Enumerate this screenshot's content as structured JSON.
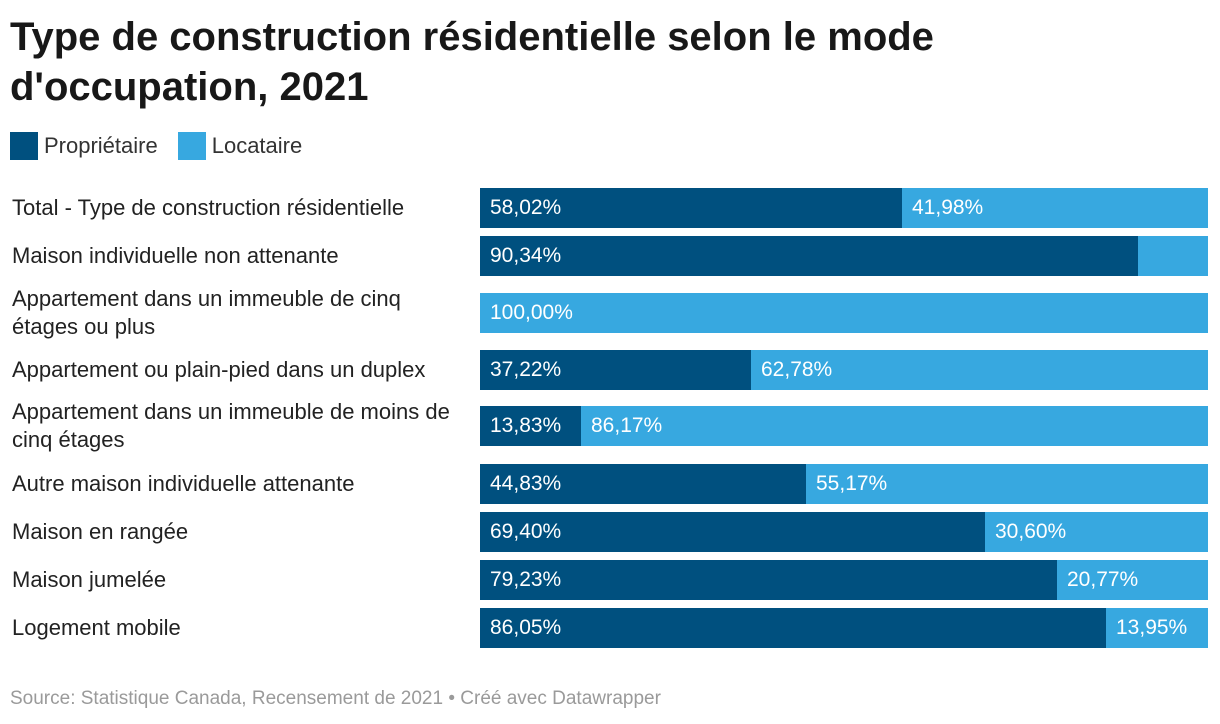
{
  "title": "Type de construction résidentielle selon le mode d'occupation, 2021",
  "source": "Source: Statistique Canada, Recensement de 2021 • Créé avec Datawrapper",
  "colors": {
    "proprietaire": "#00507f",
    "locataire": "#37a8e0"
  },
  "chart_data": {
    "type": "bar",
    "orientation": "horizontal",
    "stacked": true,
    "percent_scale": true,
    "legend_position": "top-left",
    "title": "Type de construction résidentielle selon le mode d'occupation, 2021",
    "categories": [
      "Total - Type de construction résidentielle",
      "Maison individuelle non attenante",
      "Appartement dans un immeuble de cinq étages ou plus",
      "Appartement ou plain-pied dans un duplex",
      "Appartement dans un immeuble de moins de cinq étages",
      "Autre maison individuelle attenante",
      "Maison en rangée",
      "Maison jumelée",
      "Logement mobile"
    ],
    "series": [
      {
        "name": "Propriétaire",
        "values": [
          58.02,
          90.34,
          0,
          37.22,
          13.83,
          44.83,
          69.4,
          79.23,
          86.05
        ],
        "labels": [
          "58,02%",
          "90,34%",
          "",
          "37,22%",
          "13,83%",
          "44,83%",
          "69,40%",
          "79,23%",
          "86,05%"
        ]
      },
      {
        "name": "Locataire",
        "values": [
          41.98,
          9.66,
          100.0,
          62.78,
          86.17,
          55.17,
          30.6,
          20.77,
          13.95
        ],
        "labels": [
          "41,98%",
          "",
          "100,00%",
          "62,78%",
          "86,17%",
          "55,17%",
          "30,60%",
          "20,77%",
          "13,95%"
        ]
      }
    ]
  }
}
